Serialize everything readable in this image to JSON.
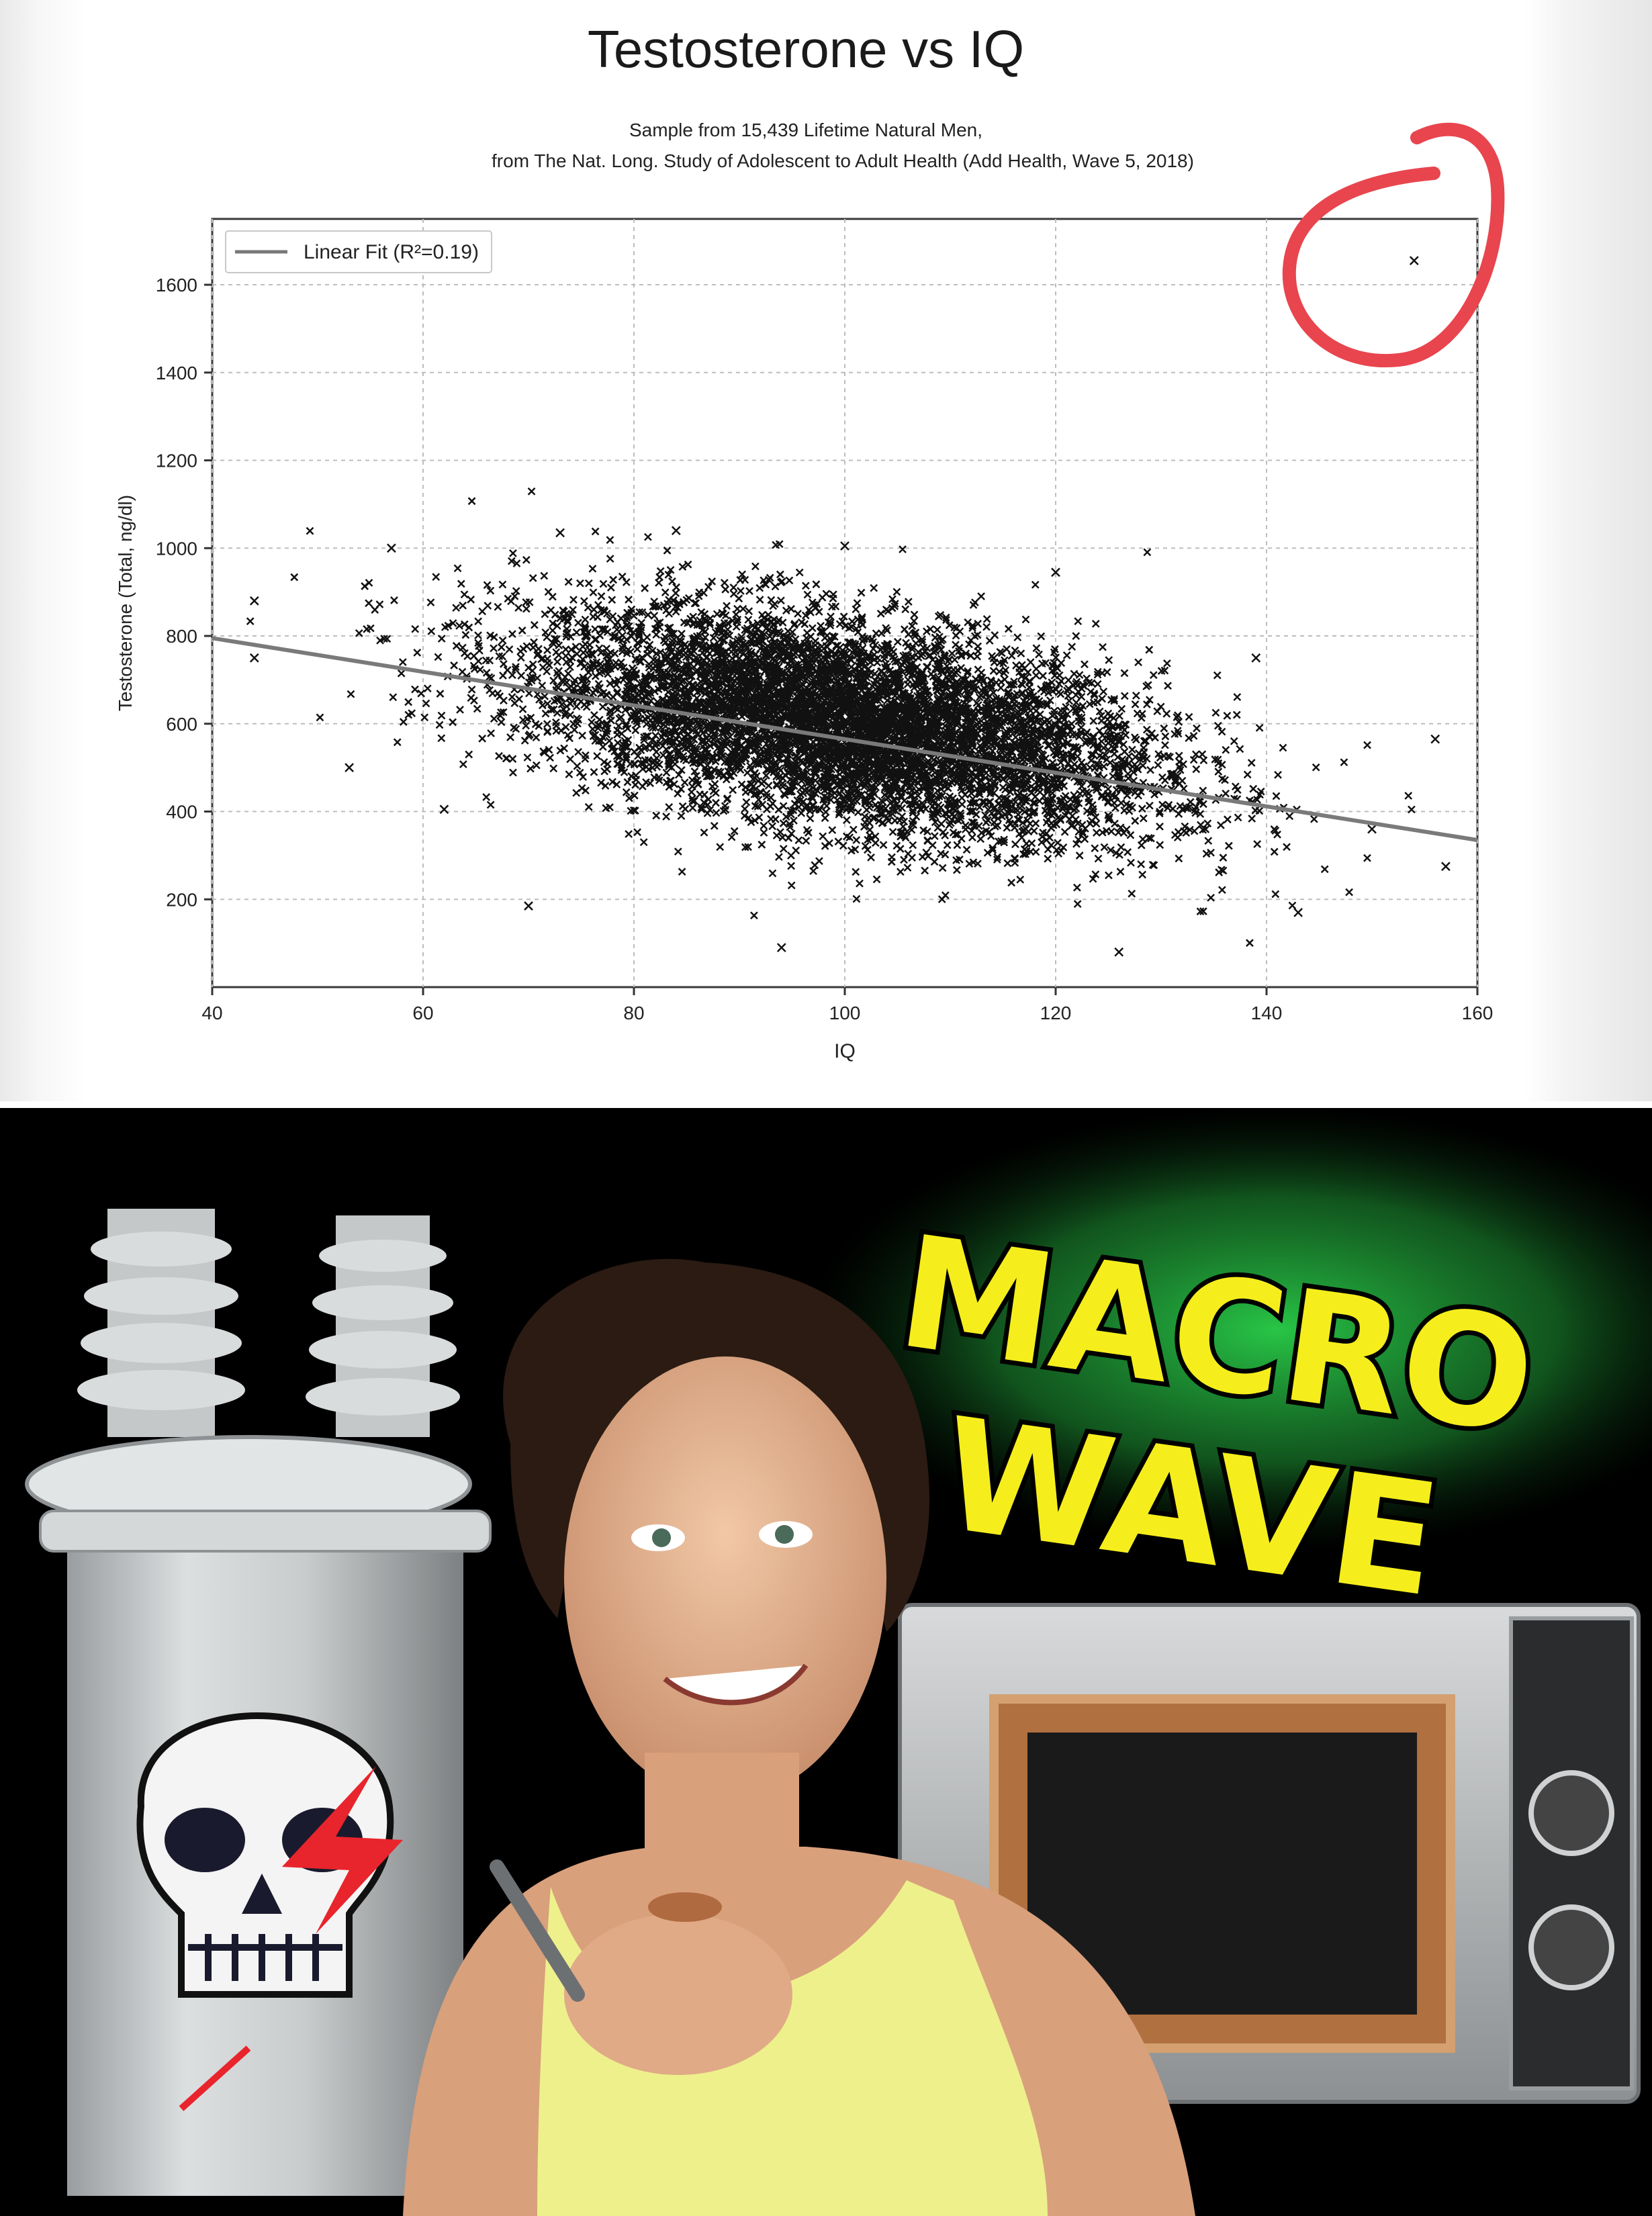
{
  "chart_data": {
    "type": "scatter",
    "title": "Testosterone vs IQ",
    "subtitle_line1": "Sample from 15,439 Lifetime Natural Men,",
    "subtitle_line2": "from The Nat. Long. Study of Adolescent to Adult Health (Add Health, Wave 5, 2018)",
    "xlabel": "IQ",
    "ylabel": "Testosterone (Total, ng/dl)",
    "xlim": [
      40,
      160
    ],
    "ylim": [
      0,
      1750
    ],
    "x_ticks": [
      40,
      60,
      80,
      100,
      120,
      140,
      160
    ],
    "y_ticks": [
      200,
      400,
      600,
      800,
      1000,
      1200,
      1400,
      1600
    ],
    "grid": true,
    "legend": {
      "placement": "top-left",
      "entries": [
        "Linear Fit (R²=0.19)"
      ]
    },
    "marker": "x",
    "sample_size": 15439,
    "distribution": {
      "mean_x": 100,
      "mean_y": 600,
      "sd_x": 15,
      "sd_y": 130,
      "correlation": -0.44
    },
    "fit_line": {
      "x": [
        40,
        160
      ],
      "y": [
        795,
        335
      ]
    },
    "outliers": [
      {
        "x": 154,
        "y": 1655
      },
      {
        "x": 157,
        "y": 275
      },
      {
        "x": 156,
        "y": 565
      },
      {
        "x": 44,
        "y": 880
      },
      {
        "x": 44,
        "y": 750
      },
      {
        "x": 70,
        "y": 185
      },
      {
        "x": 94,
        "y": 90
      },
      {
        "x": 126,
        "y": 80
      },
      {
        "x": 120,
        "y": 945
      },
      {
        "x": 100,
        "y": 1005
      },
      {
        "x": 57,
        "y": 1000
      },
      {
        "x": 73,
        "y": 1035
      },
      {
        "x": 84,
        "y": 1040
      },
      {
        "x": 53,
        "y": 500
      },
      {
        "x": 62,
        "y": 405
      },
      {
        "x": 143,
        "y": 170
      },
      {
        "x": 139,
        "y": 750
      },
      {
        "x": 150,
        "y": 360
      }
    ]
  },
  "annotation": {
    "color": "#e8454e",
    "shape": "hand-drawn circle around top-right outlier"
  },
  "thumbnail": {
    "headline_line1": "MACRO",
    "headline_line2": "WAVE",
    "headline_color": "#f5ee1c",
    "glow_color": "#2ad04a",
    "background_color": "#000000",
    "shirt_color": "#eef08c"
  }
}
